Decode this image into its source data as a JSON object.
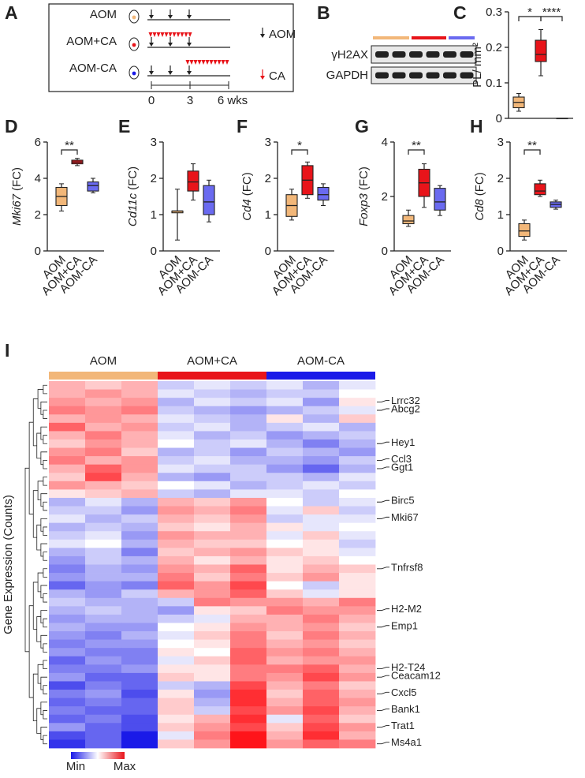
{
  "schematic": {
    "panel": "A",
    "groups": [
      "AOM",
      "AOM+CA",
      "AOM-CA"
    ],
    "legend_aom": "AOM",
    "legend_ca": "CA",
    "timeline_ticks": [
      "0",
      "3",
      "6 wks"
    ]
  },
  "blot": {
    "panel": "B",
    "rows": [
      "γH2AX",
      "GAPDH"
    ],
    "lane_colors": [
      "#f2b779",
      "#e8141a",
      "#6a6af0"
    ]
  },
  "chart_data": [
    {
      "type": "box",
      "panel": "C",
      "ylabel": "PL/ mm²",
      "ylim": [
        0,
        0.3
      ],
      "yticks": [
        0,
        0.1,
        0.2,
        0.3
      ],
      "colors": [
        "#f2b779",
        "#e8141a",
        "#6a6af0"
      ],
      "boxes": [
        {
          "min": 0.02,
          "q1": 0.03,
          "median": 0.045,
          "q3": 0.06,
          "max": 0.07
        },
        {
          "min": 0.12,
          "q1": 0.16,
          "median": 0.18,
          "q3": 0.22,
          "max": 0.25
        },
        {
          "min": 0,
          "q1": 0,
          "median": 0,
          "q3": 0,
          "max": 0
        }
      ],
      "significance": [
        "*",
        "****"
      ]
    },
    {
      "type": "box",
      "panel": "D",
      "ylabel": {
        "gene": "Mki67",
        "unit": "(FC)"
      },
      "categories": [
        "AOM",
        "AOM+CA",
        "AOM-CA"
      ],
      "ylim": [
        0,
        6
      ],
      "yticks": [
        0,
        2,
        4,
        6
      ],
      "colors": [
        "#f2b779",
        "#e8141a",
        "#6a6af0"
      ],
      "boxes": [
        {
          "min": 2.2,
          "q1": 2.5,
          "median": 3.0,
          "q3": 3.5,
          "max": 3.7
        },
        {
          "min": 4.7,
          "q1": 4.8,
          "median": 4.9,
          "q3": 5.0,
          "max": 5.1
        },
        {
          "min": 3.2,
          "q1": 3.3,
          "median": 3.6,
          "q3": 3.8,
          "max": 4.0
        }
      ],
      "significance": [
        "**"
      ]
    },
    {
      "type": "box",
      "panel": "E",
      "ylabel": {
        "gene": "Cd11c",
        "unit": "(FC)"
      },
      "categories": [
        "AOM",
        "AOM+CA",
        "AOM-CA"
      ],
      "ylim": [
        0,
        3
      ],
      "yticks": [
        0,
        1,
        2,
        3
      ],
      "colors": [
        "#f2b779",
        "#e8141a",
        "#6a6af0"
      ],
      "boxes": [
        {
          "min": 0.3,
          "q1": 1.05,
          "median": 1.1,
          "q3": 1.1,
          "max": 1.7
        },
        {
          "min": 1.4,
          "q1": 1.65,
          "median": 1.9,
          "q3": 2.2,
          "max": 2.4
        },
        {
          "min": 0.8,
          "q1": 1.0,
          "median": 1.35,
          "q3": 1.8,
          "max": 1.95
        }
      ],
      "significance": []
    },
    {
      "type": "box",
      "panel": "F",
      "ylabel": {
        "gene": "Cd4",
        "unit": "(FC)"
      },
      "categories": [
        "AOM",
        "AOM+CA",
        "AOM-CA"
      ],
      "ylim": [
        0,
        3
      ],
      "yticks": [
        0,
        1,
        2,
        3
      ],
      "colors": [
        "#f2b779",
        "#e8141a",
        "#6a6af0"
      ],
      "boxes": [
        {
          "min": 0.85,
          "q1": 0.95,
          "median": 1.25,
          "q3": 1.55,
          "max": 1.7
        },
        {
          "min": 1.45,
          "q1": 1.55,
          "median": 1.95,
          "q3": 2.35,
          "max": 2.45
        },
        {
          "min": 1.25,
          "q1": 1.4,
          "median": 1.55,
          "q3": 1.75,
          "max": 1.85
        }
      ],
      "significance": [
        "*"
      ]
    },
    {
      "type": "box",
      "panel": "G",
      "ylabel": {
        "gene": "Foxp3",
        "unit": "(FC)"
      },
      "categories": [
        "AOM",
        "AOM+CA",
        "AOM-CA"
      ],
      "ylim": [
        0,
        4
      ],
      "yticks": [
        0,
        2,
        4
      ],
      "colors": [
        "#f2b779",
        "#e8141a",
        "#6a6af0"
      ],
      "boxes": [
        {
          "min": 0.9,
          "q1": 1.0,
          "median": 1.1,
          "q3": 1.3,
          "max": 1.5
        },
        {
          "min": 1.6,
          "q1": 2.0,
          "median": 2.5,
          "q3": 3.0,
          "max": 3.2
        },
        {
          "min": 1.3,
          "q1": 1.5,
          "median": 1.8,
          "q3": 2.3,
          "max": 2.4
        }
      ],
      "significance": [
        "**"
      ]
    },
    {
      "type": "box",
      "panel": "H",
      "ylabel": {
        "gene": "Cd8",
        "unit": "(FC)"
      },
      "categories": [
        "AOM",
        "AOM+CA",
        "AOM-CA"
      ],
      "ylim": [
        0,
        3
      ],
      "yticks": [
        0,
        1,
        2,
        3
      ],
      "colors": [
        "#f2b779",
        "#e8141a",
        "#6a6af0"
      ],
      "boxes": [
        {
          "min": 0.3,
          "q1": 0.4,
          "median": 0.55,
          "q3": 0.75,
          "max": 0.85
        },
        {
          "min": 1.5,
          "q1": 1.55,
          "median": 1.65,
          "q3": 1.85,
          "max": 1.95
        },
        {
          "min": 1.15,
          "q1": 1.2,
          "median": 1.28,
          "q3": 1.35,
          "max": 1.4
        }
      ],
      "significance": [
        "**"
      ]
    },
    {
      "type": "heatmap",
      "panel": "I",
      "ylabel": "Gene Expression (Counts)",
      "groups": [
        "AOM",
        "AOM+CA",
        "AOM-CA"
      ],
      "group_colors": [
        "#f2b779",
        "#e8141a",
        "#1a1ae8"
      ],
      "legend_min": "Min",
      "legend_max": "Max",
      "row_labels": [
        null,
        null,
        "Lrrc32",
        "Abcg2",
        null,
        null,
        null,
        "Hey1",
        null,
        "Ccl3",
        "Ggt1",
        null,
        null,
        null,
        "Birc5",
        null,
        "Mki67",
        null,
        null,
        null,
        null,
        null,
        "Tnfrsf8",
        null,
        null,
        null,
        null,
        "H2-M2",
        null,
        "Emp1",
        null,
        null,
        null,
        null,
        "H2-T24",
        "Ceacam12",
        null,
        "Cxcl5",
        null,
        "Bank1",
        null,
        "Trat1",
        null,
        "Ms4a1"
      ],
      "values": [
        [
          0.3,
          0.2,
          0.3,
          -0.2,
          -0.1,
          -0.2,
          -0.1,
          -0.3,
          -0.1
        ],
        [
          0.3,
          0.4,
          0.3,
          -0.1,
          -0.2,
          -0.3,
          -0.2,
          -0.2,
          0
        ],
        [
          0.4,
          0.3,
          0.4,
          -0.3,
          -0.1,
          -0.2,
          -0.1,
          -0.4,
          0.1
        ],
        [
          0.5,
          0.4,
          0.5,
          -0.2,
          -0.3,
          -0.4,
          -0.3,
          -0.2,
          -0.1
        ],
        [
          0.3,
          0.4,
          0.3,
          -0.1,
          -0.2,
          -0.3,
          0.1,
          -0.3,
          0.2
        ],
        [
          0.6,
          0.3,
          0.4,
          -0.2,
          -0.1,
          -0.3,
          -0.2,
          -0.1,
          -0.3
        ],
        [
          0.3,
          0.5,
          0.3,
          -0.1,
          -0.3,
          -0.2,
          -0.4,
          -0.3,
          -0.2
        ],
        [
          0.2,
          0.4,
          0.3,
          0,
          -0.2,
          -0.1,
          -0.3,
          -0.5,
          -0.3
        ],
        [
          0.4,
          0.5,
          0.2,
          -0.3,
          -0.2,
          -0.4,
          -0.2,
          -0.3,
          -0.4
        ],
        [
          0.5,
          0.3,
          0.4,
          -0.2,
          -0.1,
          -0.3,
          -0.3,
          -0.4,
          -0.2
        ],
        [
          0.3,
          0.6,
          0.4,
          -0.1,
          -0.2,
          -0.2,
          -0.4,
          -0.6,
          -0.3
        ],
        [
          0.2,
          0.7,
          0.3,
          -0.3,
          -0.4,
          -0.2,
          -0.2,
          -0.3,
          -0.1
        ],
        [
          0.4,
          0.3,
          0.2,
          0,
          -0.1,
          -0.3,
          -0.2,
          -0.1,
          -0.2
        ],
        [
          0.1,
          0.2,
          0.3,
          -0.2,
          -0.3,
          -0.1,
          -0.1,
          -0.2,
          0
        ],
        [
          -0.3,
          -0.1,
          -0.3,
          0.3,
          0.2,
          0.4,
          0,
          -0.2,
          -0.1
        ],
        [
          -0.2,
          -0.2,
          -0.4,
          0.4,
          0.3,
          0.5,
          -0.1,
          0.2,
          -0.2
        ],
        [
          -0.1,
          -0.3,
          -0.2,
          0.3,
          0.2,
          0.4,
          -0.2,
          -0.1,
          -0.1
        ],
        [
          -0.3,
          -0.2,
          -0.3,
          0.2,
          0.1,
          0.3,
          0.1,
          -0.1,
          0
        ],
        [
          -0.2,
          -0.1,
          -0.4,
          0.4,
          0.3,
          0.3,
          -0.1,
          0.2,
          -0.1
        ],
        [
          -0.1,
          0,
          -0.3,
          0.3,
          0.2,
          0.2,
          0,
          0.1,
          -0.2
        ],
        [
          -0.3,
          -0.2,
          -0.5,
          0.2,
          0.3,
          0.4,
          0.2,
          0.1,
          -0.1
        ],
        [
          -0.4,
          -0.2,
          -0.3,
          0.3,
          0.1,
          0.3,
          0.1,
          0.2,
          0
        ],
        [
          -0.5,
          -0.3,
          -0.4,
          0.4,
          0.3,
          0.6,
          0.1,
          0.3,
          0.2
        ],
        [
          -0.4,
          -0.3,
          -0.3,
          0.5,
          0.2,
          0.5,
          0.2,
          0.4,
          0.1
        ],
        [
          -0.6,
          -0.4,
          -0.5,
          0.6,
          0.4,
          0.7,
          0,
          -0.2,
          0.1
        ],
        [
          -0.3,
          -0.4,
          -0.2,
          0.3,
          0.4,
          0.6,
          0.2,
          -0.1,
          0.1
        ],
        [
          -0.2,
          -0.3,
          -0.3,
          -0.2,
          0.5,
          0.4,
          0.4,
          0.3,
          0.5
        ],
        [
          -0.3,
          -0.2,
          -0.3,
          -0.4,
          0.1,
          0.2,
          0.5,
          0.4,
          0.4
        ],
        [
          -0.4,
          -0.3,
          -0.3,
          -0.2,
          -0.1,
          0.3,
          0.3,
          0.5,
          0.3
        ],
        [
          -0.3,
          -0.4,
          -0.4,
          0,
          0.1,
          0.4,
          0.3,
          0.4,
          0.2
        ],
        [
          -0.4,
          -0.5,
          -0.3,
          -0.1,
          0.2,
          0.5,
          0.2,
          0.5,
          0.3
        ],
        [
          -0.5,
          -0.4,
          -0.4,
          0,
          0.1,
          0.5,
          0.3,
          0.4,
          0.2
        ],
        [
          -0.4,
          -0.5,
          -0.5,
          0.1,
          0,
          0.6,
          0.4,
          0.5,
          0.3
        ],
        [
          -0.6,
          -0.4,
          -0.5,
          -0.1,
          0.2,
          0.6,
          0.3,
          0.4,
          0.4
        ],
        [
          -0.5,
          -0.5,
          -0.4,
          0.1,
          0.1,
          0.5,
          0.5,
          0.6,
          0.3
        ],
        [
          -0.4,
          -0.6,
          -0.6,
          0.2,
          0.1,
          0.5,
          0.4,
          0.7,
          0.4
        ],
        [
          -0.7,
          -0.5,
          -0.6,
          -0.2,
          -0.3,
          0.7,
          0.3,
          0.5,
          0.2
        ],
        [
          -0.5,
          -0.4,
          -0.7,
          0.1,
          -0.4,
          0.8,
          0.2,
          0.6,
          0.3
        ],
        [
          -0.6,
          -0.5,
          -0.6,
          0.2,
          -0.3,
          0.8,
          0.3,
          0.6,
          0.4
        ],
        [
          -0.5,
          -0.6,
          -0.6,
          0.2,
          -0.2,
          0.7,
          0.4,
          0.7,
          0.3
        ],
        [
          -0.6,
          -0.5,
          -0.7,
          0.1,
          0.3,
          0.8,
          -0.1,
          0.6,
          0.2
        ],
        [
          -0.4,
          -0.6,
          -0.7,
          0.2,
          0.4,
          0.7,
          0.2,
          0.7,
          0.4
        ],
        [
          -0.7,
          -0.6,
          -0.9,
          -0.1,
          0.5,
          0.9,
          0.3,
          0.8,
          0.3
        ],
        [
          -0.8,
          -0.6,
          -0.9,
          0.2,
          0.4,
          0.9,
          0.4,
          0.6,
          0.5
        ]
      ]
    }
  ]
}
